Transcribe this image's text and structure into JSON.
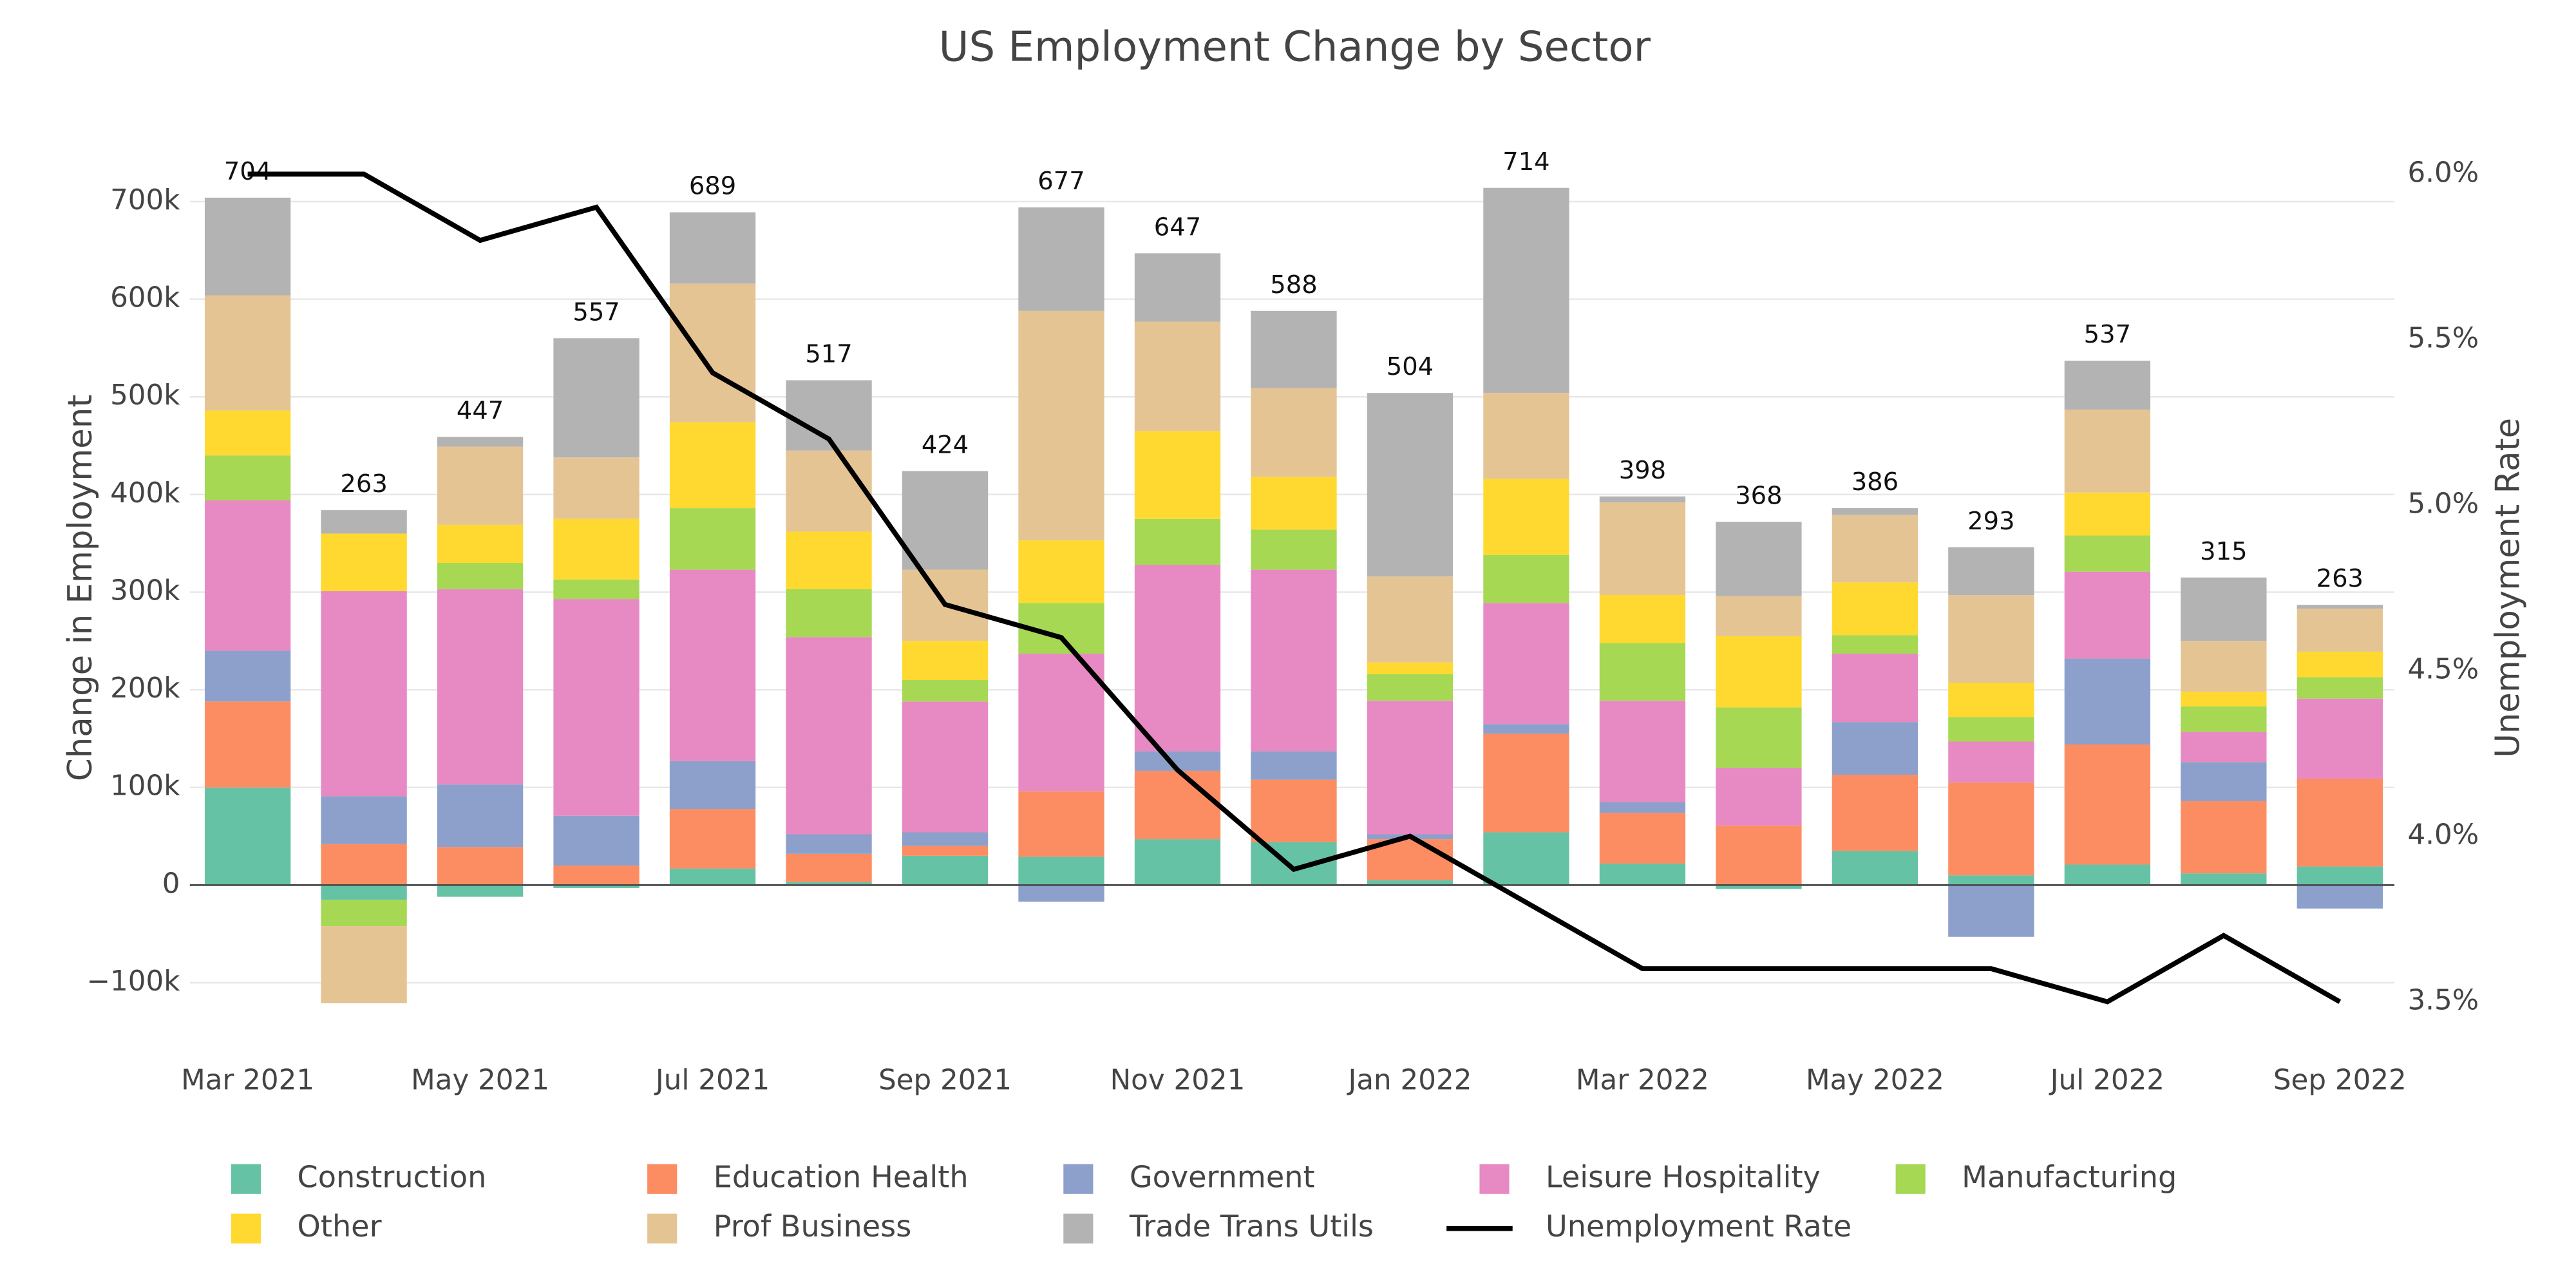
{
  "chart_data": {
    "type": "bar",
    "title": "US Employment Change by Sector",
    "y_label": "Change in Employment",
    "y2_label": "Unemployment Rate",
    "categories": [
      "Mar 2021",
      null,
      "May 2021",
      null,
      "Jul 2021",
      null,
      "Sep 2021",
      null,
      "Nov 2021",
      null,
      "Jan 2022",
      null,
      "Mar 2022",
      null,
      "May 2022",
      null,
      "Jul 2022",
      null,
      "Sep 2022"
    ],
    "ylim": [
      -150000,
      762000
    ],
    "yticks": [
      {
        "value": -100000,
        "label": "−100k"
      },
      0,
      {
        "value": 100000,
        "label": "100k"
      },
      {
        "value": 200000,
        "label": "200k"
      },
      {
        "value": 300000,
        "label": "300k"
      },
      {
        "value": 400000,
        "label": "400k"
      },
      {
        "value": 500000,
        "label": "500k"
      },
      {
        "value": 600000,
        "label": "600k"
      },
      {
        "value": 700000,
        "label": "700k"
      }
    ],
    "y2lim": [
      3.41,
      6.1
    ],
    "y2ticks": [
      {
        "value": 3.5,
        "label": "3.5%"
      },
      {
        "value": 4.0,
        "label": "4.0%"
      },
      {
        "value": 4.5,
        "label": "4.5%"
      },
      {
        "value": 5.0,
        "label": "5.0%"
      },
      {
        "value": 5.5,
        "label": "5.5%"
      },
      {
        "value": 6.0,
        "label": "6.0%"
      }
    ],
    "grid": true,
    "totals": [
      704000,
      263000,
      447000,
      557000,
      689000,
      517000,
      424000,
      677000,
      647000,
      588000,
      504000,
      714000,
      398000,
      368000,
      386000,
      293000,
      537000,
      315000,
      263000
    ],
    "total_labels": [
      "704",
      "263",
      "447",
      "557",
      "689",
      "517",
      "424",
      "677",
      "647",
      "588",
      "504",
      "714",
      "398",
      "368",
      "386",
      "293",
      "537",
      "315",
      "263"
    ],
    "series": [
      {
        "name": "Construction",
        "color": "#66c2a5",
        "values": [
          100000,
          -15000,
          -12000,
          -3000,
          17000,
          3000,
          30000,
          29000,
          47000,
          44000,
          5000,
          54000,
          22000,
          -4000,
          35000,
          10000,
          21000,
          12000,
          19000
        ]
      },
      {
        "name": "Education Health",
        "color": "#fc8d62",
        "values": [
          88000,
          42000,
          39000,
          20000,
          61000,
          29000,
          10000,
          67000,
          70000,
          64000,
          42000,
          101000,
          52000,
          61000,
          78000,
          95000,
          123000,
          74000,
          90000
        ]
      },
      {
        "name": "Government",
        "color": "#8da0cb",
        "values": [
          52000,
          49000,
          64000,
          51000,
          49000,
          20000,
          14000,
          -17000,
          20000,
          29000,
          5000,
          10000,
          11000,
          0,
          54000,
          -53000,
          88000,
          40000,
          -24000
        ]
      },
      {
        "name": "Leisure Hospitality",
        "color": "#e78ac3",
        "values": [
          154000,
          210000,
          200000,
          222000,
          196000,
          202000,
          134000,
          141000,
          191000,
          186000,
          137000,
          124000,
          104000,
          59000,
          70000,
          42000,
          89000,
          31000,
          82000
        ]
      },
      {
        "name": "Manufacturing",
        "color": "#a6d854",
        "values": [
          46000,
          -27000,
          27000,
          20000,
          63000,
          49000,
          22000,
          52000,
          47000,
          41000,
          27000,
          49000,
          59000,
          62000,
          19000,
          25000,
          37000,
          26000,
          22000
        ]
      },
      {
        "name": "Other",
        "color": "#ffd92f",
        "values": [
          46000,
          59000,
          39000,
          62000,
          88000,
          59000,
          40000,
          64000,
          90000,
          54000,
          12000,
          78000,
          49000,
          73000,
          54000,
          35000,
          44000,
          15000,
          26000
        ]
      },
      {
        "name": "Prof Business",
        "color": "#e5c494",
        "values": [
          118000,
          -79000,
          80000,
          63000,
          142000,
          83000,
          73000,
          235000,
          112000,
          91000,
          88000,
          88000,
          95000,
          41000,
          69000,
          90000,
          85000,
          52000,
          44000
        ]
      },
      {
        "name": "Trade Trans Utils",
        "color": "#b3b3b3",
        "values": [
          100000,
          24000,
          10000,
          122000,
          73000,
          72000,
          101000,
          106000,
          70000,
          79000,
          188000,
          210000,
          6000,
          76000,
          7000,
          49000,
          50000,
          65000,
          4000
        ]
      },
      {
        "name": "Unemployment Rate",
        "color": "#000000",
        "type": "line",
        "axis": "y2",
        "values": [
          6.0,
          6.0,
          5.8,
          5.9,
          5.4,
          5.2,
          4.7,
          4.6,
          4.2,
          3.9,
          4.0,
          3.8,
          3.6,
          3.6,
          3.6,
          3.6,
          3.5,
          3.7,
          3.5
        ]
      }
    ]
  }
}
